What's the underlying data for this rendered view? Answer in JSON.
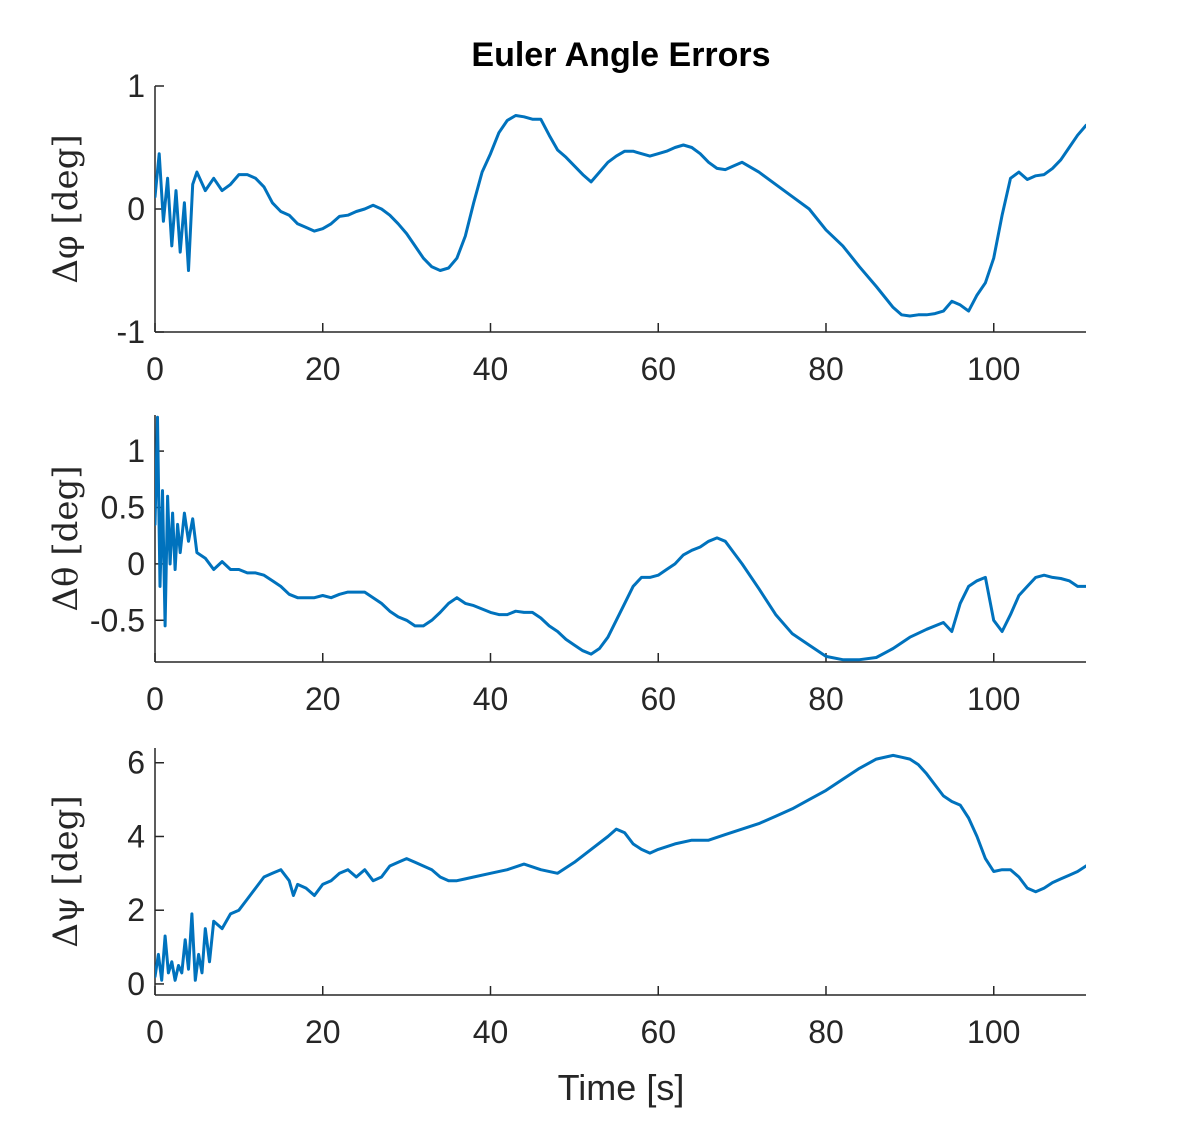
{
  "figure": {
    "title": "Euler Angle Errors",
    "xlabel": "Time [s]"
  },
  "colors": {
    "line": "#0072BD",
    "axis": "#262626",
    "background": "#ffffff"
  },
  "chart_data": [
    {
      "type": "line",
      "xlabel": "",
      "ylabel": "Δφ [deg]",
      "xlim": [
        0,
        111
      ],
      "ylim": [
        -1,
        1
      ],
      "xticks": [
        0,
        20,
        40,
        60,
        80,
        100
      ],
      "yticks": [
        -1,
        0,
        1
      ],
      "ytick_labels": [
        "-1",
        "0",
        "1"
      ],
      "grid": false,
      "series": [
        {
          "x": [
            0,
            0.5,
            1,
            1.5,
            2,
            2.5,
            3,
            3.5,
            4,
            4.5,
            5,
            6,
            7,
            8,
            9,
            10,
            11,
            12,
            13,
            14,
            15,
            16,
            17,
            18,
            19,
            20,
            21,
            22,
            23,
            24,
            25,
            26,
            27,
            28,
            29,
            30,
            31,
            32,
            33,
            34,
            35,
            36,
            37,
            38,
            39,
            40,
            41,
            42,
            43,
            44,
            45,
            46,
            47,
            48,
            49,
            50,
            51,
            52,
            53,
            54,
            55,
            56,
            57,
            58,
            59,
            60,
            61,
            62,
            63,
            64,
            65,
            66,
            67,
            68,
            69,
            70,
            72,
            74,
            76,
            78,
            80,
            82,
            84,
            86,
            88,
            89,
            90,
            91,
            92,
            93,
            94,
            95,
            96,
            97,
            98,
            99,
            100,
            101,
            102,
            103,
            104,
            105,
            106,
            107,
            108,
            109,
            110,
            111
          ],
          "y": [
            0.1,
            0.45,
            -0.1,
            0.25,
            -0.3,
            0.15,
            -0.35,
            0.05,
            -0.5,
            0.2,
            0.3,
            0.15,
            0.25,
            0.15,
            0.2,
            0.28,
            0.28,
            0.25,
            0.18,
            0.05,
            -0.02,
            -0.05,
            -0.12,
            -0.15,
            -0.18,
            -0.16,
            -0.12,
            -0.06,
            -0.05,
            -0.02,
            0.0,
            0.03,
            0.0,
            -0.05,
            -0.12,
            -0.2,
            -0.3,
            -0.4,
            -0.47,
            -0.5,
            -0.48,
            -0.4,
            -0.22,
            0.05,
            0.3,
            0.45,
            0.62,
            0.72,
            0.76,
            0.75,
            0.73,
            0.73,
            0.6,
            0.48,
            0.42,
            0.35,
            0.28,
            0.22,
            0.3,
            0.38,
            0.43,
            0.47,
            0.47,
            0.45,
            0.43,
            0.45,
            0.47,
            0.5,
            0.52,
            0.5,
            0.45,
            0.38,
            0.33,
            0.32,
            0.35,
            0.38,
            0.3,
            0.2,
            0.1,
            0.0,
            -0.17,
            -0.3,
            -0.47,
            -0.63,
            -0.8,
            -0.86,
            -0.87,
            -0.86,
            -0.86,
            -0.85,
            -0.83,
            -0.75,
            -0.78,
            -0.83,
            -0.7,
            -0.6,
            -0.4,
            -0.05,
            0.25,
            0.3,
            0.24,
            0.27,
            0.28,
            0.33,
            0.4,
            0.5,
            0.6,
            0.68
          ]
        }
      ]
    },
    {
      "type": "line",
      "xlabel": "",
      "ylabel": "Δθ [deg]",
      "xlim": [
        0,
        111
      ],
      "ylim": [
        -0.87,
        1.32
      ],
      "xticks": [
        0,
        20,
        40,
        60,
        80,
        100
      ],
      "yticks": [
        -0.5,
        0,
        0.5,
        1
      ],
      "ytick_labels": [
        "-0.5",
        "0",
        "0.5",
        "1"
      ],
      "grid": false,
      "series": [
        {
          "x": [
            0,
            0.3,
            0.6,
            0.9,
            1.2,
            1.5,
            1.8,
            2.1,
            2.4,
            2.7,
            3,
            3.5,
            4,
            4.5,
            5,
            6,
            7,
            8,
            9,
            10,
            11,
            12,
            13,
            14,
            15,
            16,
            17,
            18,
            19,
            20,
            21,
            22,
            23,
            24,
            25,
            26,
            27,
            28,
            29,
            30,
            31,
            32,
            33,
            34,
            35,
            36,
            37,
            38,
            39,
            40,
            41,
            42,
            43,
            44,
            45,
            46,
            47,
            48,
            49,
            50,
            51,
            52,
            53,
            54,
            55,
            56,
            57,
            58,
            59,
            60,
            61,
            62,
            63,
            64,
            65,
            66,
            67,
            68,
            69,
            70,
            72,
            74,
            76,
            78,
            80,
            82,
            84,
            86,
            88,
            90,
            92,
            94,
            95,
            96,
            97,
            98,
            99,
            100,
            101,
            102,
            103,
            104,
            105,
            106,
            107,
            108,
            109,
            110,
            111
          ],
          "y": [
            0.35,
            1.3,
            -0.2,
            0.65,
            -0.55,
            0.6,
            0.0,
            0.45,
            -0.05,
            0.35,
            0.1,
            0.45,
            0.2,
            0.4,
            0.1,
            0.05,
            -0.05,
            0.02,
            -0.05,
            -0.05,
            -0.08,
            -0.08,
            -0.1,
            -0.15,
            -0.2,
            -0.27,
            -0.3,
            -0.3,
            -0.3,
            -0.28,
            -0.3,
            -0.27,
            -0.25,
            -0.25,
            -0.25,
            -0.3,
            -0.35,
            -0.42,
            -0.47,
            -0.5,
            -0.55,
            -0.55,
            -0.5,
            -0.43,
            -0.35,
            -0.3,
            -0.35,
            -0.37,
            -0.4,
            -0.43,
            -0.45,
            -0.45,
            -0.42,
            -0.43,
            -0.43,
            -0.48,
            -0.55,
            -0.6,
            -0.67,
            -0.72,
            -0.77,
            -0.8,
            -0.75,
            -0.65,
            -0.5,
            -0.35,
            -0.2,
            -0.12,
            -0.12,
            -0.1,
            -0.05,
            0.0,
            0.08,
            0.12,
            0.15,
            0.2,
            0.23,
            0.2,
            0.1,
            0.0,
            -0.22,
            -0.45,
            -0.62,
            -0.72,
            -0.82,
            -0.85,
            -0.85,
            -0.83,
            -0.75,
            -0.65,
            -0.58,
            -0.52,
            -0.6,
            -0.35,
            -0.2,
            -0.15,
            -0.12,
            -0.5,
            -0.6,
            -0.45,
            -0.28,
            -0.2,
            -0.12,
            -0.1,
            -0.12,
            -0.13,
            -0.15,
            -0.2,
            -0.2
          ]
        }
      ]
    },
    {
      "type": "line",
      "xlabel": "Time [s]",
      "ylabel": "Δψ [deg]",
      "xlim": [
        0,
        111
      ],
      "ylim": [
        -0.3,
        6.4
      ],
      "xticks": [
        0,
        20,
        40,
        60,
        80,
        100
      ],
      "yticks": [
        0,
        2,
        4,
        6
      ],
      "ytick_labels": [
        "0",
        "2",
        "4",
        "6"
      ],
      "grid": false,
      "series": [
        {
          "x": [
            0,
            0.4,
            0.8,
            1.2,
            1.6,
            2,
            2.4,
            2.8,
            3.2,
            3.6,
            4,
            4.4,
            4.8,
            5.2,
            5.6,
            6,
            6.5,
            7,
            8,
            9,
            10,
            11,
            12,
            13,
            14,
            15,
            16,
            16.5,
            17,
            18,
            19,
            20,
            21,
            22,
            23,
            24,
            25,
            26,
            27,
            28,
            29,
            30,
            31,
            32,
            33,
            34,
            35,
            36,
            37,
            38,
            40,
            42,
            44,
            46,
            48,
            50,
            52,
            54,
            55,
            56,
            57,
            58,
            59,
            60,
            62,
            64,
            66,
            68,
            70,
            72,
            74,
            76,
            78,
            80,
            82,
            84,
            86,
            88,
            89,
            90,
            91,
            92,
            93,
            94,
            95,
            96,
            97,
            98,
            99,
            100,
            101,
            102,
            103,
            104,
            105,
            106,
            107,
            108,
            109,
            110,
            111
          ],
          "y": [
            0.2,
            0.8,
            0.1,
            1.3,
            0.3,
            0.6,
            0.1,
            0.5,
            0.3,
            1.2,
            0.4,
            1.9,
            0.1,
            0.8,
            0.3,
            1.5,
            0.6,
            1.7,
            1.5,
            1.9,
            2.0,
            2.3,
            2.6,
            2.9,
            3.0,
            3.1,
            2.8,
            2.4,
            2.7,
            2.6,
            2.4,
            2.7,
            2.8,
            3.0,
            3.1,
            2.9,
            3.1,
            2.8,
            2.9,
            3.2,
            3.3,
            3.4,
            3.3,
            3.2,
            3.1,
            2.9,
            2.8,
            2.8,
            2.85,
            2.9,
            3.0,
            3.1,
            3.25,
            3.1,
            3.0,
            3.3,
            3.65,
            4.0,
            4.2,
            4.1,
            3.8,
            3.65,
            3.55,
            3.65,
            3.8,
            3.9,
            3.9,
            4.05,
            4.2,
            4.35,
            4.55,
            4.75,
            5.0,
            5.25,
            5.55,
            5.85,
            6.1,
            6.2,
            6.15,
            6.1,
            5.95,
            5.7,
            5.4,
            5.1,
            4.95,
            4.85,
            4.5,
            4.0,
            3.4,
            3.05,
            3.1,
            3.1,
            2.9,
            2.6,
            2.5,
            2.6,
            2.75,
            2.85,
            2.95,
            3.05,
            3.2
          ]
        }
      ]
    }
  ]
}
